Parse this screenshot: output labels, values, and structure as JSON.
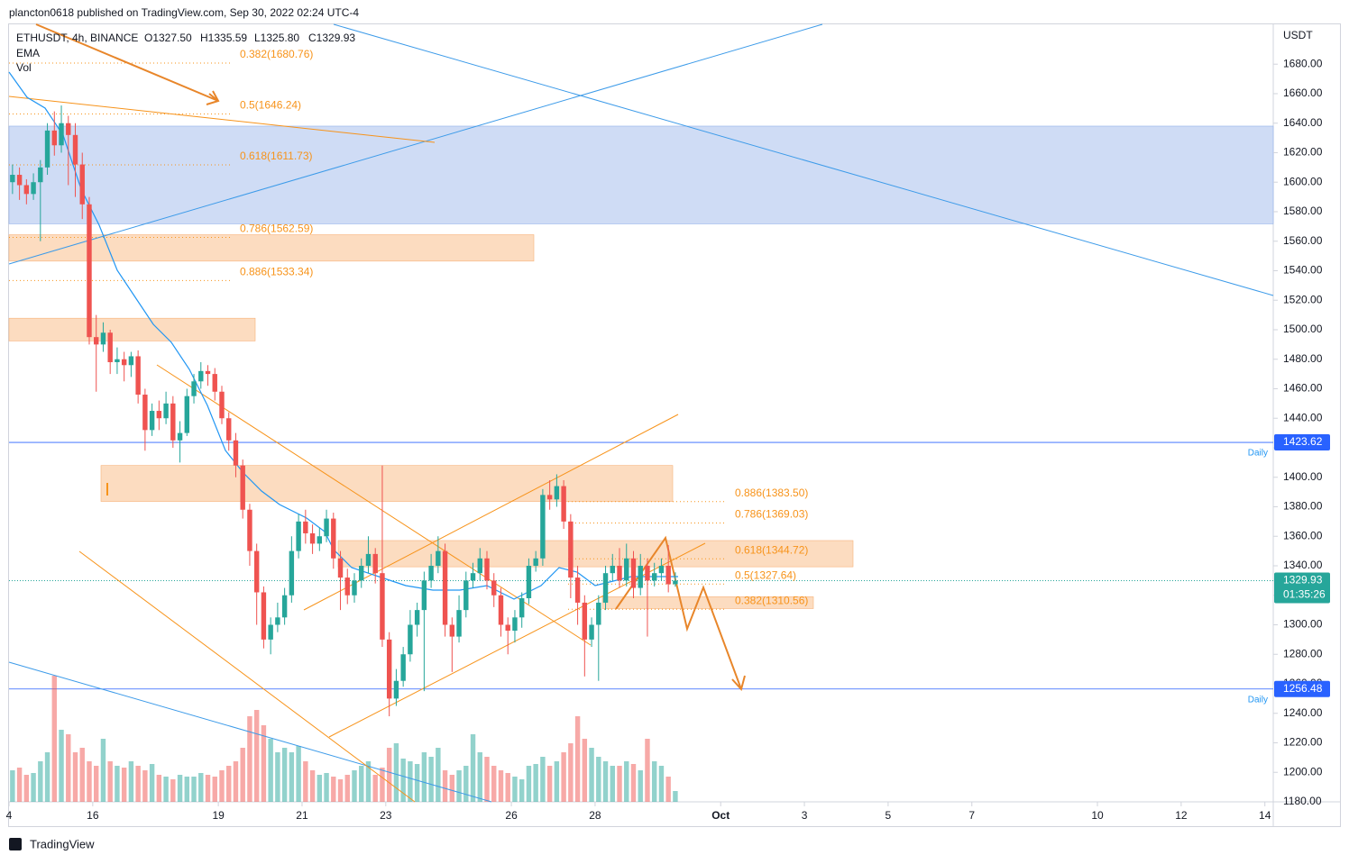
{
  "header": {
    "byline": "plancton0618 published on TradingView.com, Sep 30, 2022 02:24 UTC-4",
    "symbol": "ETHUSDT, 4h, BINANCE",
    "open": "O1327.50",
    "high": "H1335.59",
    "low": "L1325.80",
    "close": "C1329.93",
    "ema": "EMA",
    "vol": "Vol",
    "footer": "TradingView"
  },
  "chart_data": {
    "type": "candlestick",
    "currency": "USDT",
    "xlim": [
      14,
      44.2
    ],
    "xticks": [
      {
        "value": 14,
        "label": "4"
      },
      16,
      19,
      21,
      23,
      26,
      28,
      {
        "value": 31,
        "label": "Oct"
      },
      {
        "value": 33,
        "label": "3"
      },
      {
        "value": 35,
        "label": "5"
      },
      {
        "value": 37,
        "label": "7"
      },
      {
        "value": 40,
        "label": "10"
      },
      {
        "value": 42,
        "label": "12"
      },
      {
        "value": 44,
        "label": "14"
      }
    ],
    "ylim": [
      1180,
      1707
    ],
    "yticks": [
      {
        "value": 1180,
        "label": "1180.00"
      },
      {
        "value": 1200,
        "label": "1200.00"
      },
      {
        "value": 1220,
        "label": "1220.00"
      },
      {
        "value": 1240,
        "label": "1240.00"
      },
      {
        "value": 1260,
        "label": "1260.00"
      },
      {
        "value": 1280,
        "label": "1280.00"
      },
      {
        "value": 1300,
        "label": "1300.00"
      },
      {
        "value": 1320,
        "label": "1320.00"
      },
      {
        "value": 1340,
        "label": "1340.00"
      },
      {
        "value": 1360,
        "label": "1360.00"
      },
      {
        "value": 1380,
        "label": "1380.00"
      },
      {
        "value": 1400,
        "label": "1400.00"
      },
      {
        "value": 1420,
        "label": "1420.00"
      },
      {
        "value": 1440,
        "label": "1440.00"
      },
      {
        "value": 1460,
        "label": "1460.00"
      },
      {
        "value": 1480,
        "label": "1480.00"
      },
      {
        "value": 1500,
        "label": "1500.00"
      },
      {
        "value": 1520,
        "label": "1520.00"
      },
      {
        "value": 1540,
        "label": "1540.00"
      },
      {
        "value": 1560,
        "label": "1560.00"
      },
      {
        "value": 1580,
        "label": "1580.00"
      },
      {
        "value": 1600,
        "label": "1600.00"
      },
      {
        "value": 1620,
        "label": "1620.00"
      },
      {
        "value": 1640,
        "label": "1640.00"
      },
      {
        "value": 1660,
        "label": "1660.00"
      },
      {
        "value": 1680,
        "label": "1680.00"
      }
    ],
    "up_color": "#26a69a",
    "down_color": "#ef5350",
    "candles": [
      [
        1600,
        1612,
        1592,
        1605
      ],
      [
        1605,
        1610,
        1588,
        1598
      ],
      [
        1598,
        1602,
        1585,
        1592
      ],
      [
        1592,
        1606,
        1588,
        1600
      ],
      [
        1600,
        1615,
        1560,
        1610
      ],
      [
        1610,
        1640,
        1605,
        1635
      ],
      [
        1635,
        1648,
        1618,
        1625
      ],
      [
        1625,
        1652,
        1620,
        1640
      ],
      [
        1640,
        1645,
        1598,
        1632
      ],
      [
        1632,
        1640,
        1590,
        1612
      ],
      [
        1612,
        1620,
        1575,
        1585
      ],
      [
        1585,
        1590,
        1490,
        1495
      ],
      [
        1495,
        1510,
        1458,
        1490
      ],
      [
        1490,
        1505,
        1485,
        1498
      ],
      [
        1498,
        1500,
        1470,
        1478
      ],
      [
        1478,
        1488,
        1470,
        1480
      ],
      [
        1480,
        1485,
        1465,
        1476
      ],
      [
        1476,
        1485,
        1468,
        1482
      ],
      [
        1482,
        1486,
        1450,
        1456
      ],
      [
        1456,
        1460,
        1418,
        1432
      ],
      [
        1432,
        1450,
        1428,
        1445
      ],
      [
        1445,
        1452,
        1432,
        1440
      ],
      [
        1440,
        1458,
        1436,
        1450
      ],
      [
        1450,
        1455,
        1420,
        1425
      ],
      [
        1425,
        1438,
        1410,
        1430
      ],
      [
        1430,
        1460,
        1428,
        1455
      ],
      [
        1455,
        1470,
        1450,
        1465
      ],
      [
        1465,
        1478,
        1460,
        1472
      ],
      [
        1472,
        1476,
        1462,
        1470
      ],
      [
        1470,
        1474,
        1452,
        1458
      ],
      [
        1458,
        1462,
        1436,
        1440
      ],
      [
        1440,
        1444,
        1418,
        1425
      ],
      [
        1425,
        1430,
        1400,
        1408
      ],
      [
        1408,
        1412,
        1372,
        1378
      ],
      [
        1378,
        1382,
        1340,
        1350
      ],
      [
        1350,
        1355,
        1300,
        1322
      ],
      [
        1322,
        1326,
        1284,
        1290
      ],
      [
        1290,
        1305,
        1280,
        1300
      ],
      [
        1300,
        1315,
        1295,
        1305
      ],
      [
        1305,
        1325,
        1300,
        1320
      ],
      [
        1320,
        1360,
        1315,
        1350
      ],
      [
        1350,
        1375,
        1345,
        1370
      ],
      [
        1370,
        1378,
        1355,
        1362
      ],
      [
        1362,
        1368,
        1348,
        1355
      ],
      [
        1355,
        1366,
        1350,
        1360
      ],
      [
        1360,
        1378,
        1356,
        1372
      ],
      [
        1372,
        1376,
        1338,
        1345
      ],
      [
        1345,
        1350,
        1310,
        1332
      ],
      [
        1332,
        1338,
        1314,
        1320
      ],
      [
        1320,
        1335,
        1315,
        1330
      ],
      [
        1330,
        1345,
        1325,
        1340
      ],
      [
        1340,
        1360,
        1335,
        1348
      ],
      [
        1348,
        1352,
        1328,
        1335
      ],
      [
        1335,
        1408,
        1285,
        1290
      ],
      [
        1290,
        1295,
        1238,
        1250
      ],
      [
        1250,
        1270,
        1245,
        1262
      ],
      [
        1262,
        1285,
        1258,
        1280
      ],
      [
        1280,
        1310,
        1275,
        1300
      ],
      [
        1300,
        1315,
        1292,
        1310
      ],
      [
        1310,
        1336,
        1255,
        1330
      ],
      [
        1330,
        1348,
        1325,
        1340
      ],
      [
        1340,
        1360,
        1335,
        1350
      ],
      [
        1350,
        1355,
        1292,
        1300
      ],
      [
        1300,
        1305,
        1268,
        1292
      ],
      [
        1292,
        1320,
        1288,
        1310
      ],
      [
        1310,
        1336,
        1305,
        1330
      ],
      [
        1330,
        1342,
        1325,
        1335
      ],
      [
        1335,
        1352,
        1330,
        1345
      ],
      [
        1345,
        1350,
        1324,
        1330
      ],
      [
        1330,
        1335,
        1312,
        1320
      ],
      [
        1320,
        1325,
        1292,
        1300
      ],
      [
        1300,
        1305,
        1280,
        1296
      ],
      [
        1296,
        1310,
        1288,
        1305
      ],
      [
        1305,
        1322,
        1298,
        1318
      ],
      [
        1318,
        1345,
        1314,
        1340
      ],
      [
        1340,
        1350,
        1336,
        1345
      ],
      [
        1345,
        1392,
        1340,
        1388
      ],
      [
        1388,
        1398,
        1378,
        1385
      ],
      [
        1385,
        1402,
        1380,
        1394
      ],
      [
        1394,
        1398,
        1365,
        1370
      ],
      [
        1370,
        1375,
        1318,
        1332
      ],
      [
        1332,
        1340,
        1300,
        1315
      ],
      [
        1315,
        1320,
        1265,
        1290
      ],
      [
        1290,
        1305,
        1285,
        1300
      ],
      [
        1300,
        1320,
        1262,
        1315
      ],
      [
        1315,
        1340,
        1310,
        1335
      ],
      [
        1335,
        1348,
        1330,
        1340
      ],
      [
        1340,
        1352,
        1325,
        1330
      ],
      [
        1330,
        1355,
        1326,
        1345
      ],
      [
        1345,
        1350,
        1318,
        1325
      ],
      [
        1325,
        1348,
        1320,
        1340
      ],
      [
        1340,
        1345,
        1292,
        1330
      ],
      [
        1330,
        1342,
        1326,
        1335
      ],
      [
        1335,
        1345,
        1330,
        1340
      ],
      [
        1340,
        1354,
        1322,
        1327.5
      ],
      [
        1327.5,
        1335.59,
        1325.8,
        1329.93
      ]
    ],
    "volume": [
      35,
      38,
      30,
      32,
      45,
      55,
      140,
      80,
      75,
      55,
      60,
      45,
      40,
      70,
      45,
      40,
      38,
      45,
      40,
      35,
      42,
      30,
      28,
      25,
      30,
      28,
      28,
      32,
      30,
      28,
      35,
      40,
      45,
      60,
      95,
      102,
      85,
      70,
      55,
      60,
      55,
      62,
      45,
      35,
      30,
      32,
      28,
      25,
      30,
      35,
      40,
      45,
      30,
      38,
      60,
      65,
      48,
      45,
      42,
      55,
      50,
      60,
      35,
      30,
      35,
      40,
      75,
      55,
      50,
      40,
      35,
      32,
      28,
      25,
      40,
      42,
      50,
      40,
      45,
      55,
      65,
      95,
      70,
      60,
      50,
      45,
      40,
      40,
      45,
      42,
      35,
      70,
      45,
      40,
      28,
      12
    ],
    "zones": [
      {
        "low": 1571.8,
        "high": 1638,
        "color": "#cfdcf5"
      },
      {
        "low": 1546.5,
        "high": 1564.4,
        "color": "#fcdcc0"
      },
      {
        "low": 1492.4,
        "high": 1507.8,
        "color": "#fcdcc0"
      },
      {
        "low": 1383.6,
        "high": 1408,
        "color": "#fcdcc0"
      },
      {
        "low": 1339.3,
        "high": 1357.1,
        "color": "#fcdcc0"
      },
      {
        "low": 1311,
        "high": 1319,
        "color": "#fcdcc0"
      }
    ],
    "fib_left": [
      {
        "label": "0.382(1680.76)",
        "value": 1680.76
      },
      {
        "label": "0.5(1646.24)",
        "value": 1646.24
      },
      {
        "label": "0.618(1611.73)",
        "value": 1611.73
      },
      {
        "label": "0.786(1562.59)",
        "value": 1562.59
      },
      {
        "label": "0.886(1533.34)",
        "value": 1533.34
      }
    ],
    "fib_right": [
      {
        "label": "0.886(1383.50)",
        "value": 1383.5
      },
      {
        "label": "0.786(1369.03)",
        "value": 1369.03
      },
      {
        "label": "0.618(1344.72)",
        "value": 1344.72
      },
      {
        "label": "0.5(1327.64)",
        "value": 1327.64
      },
      {
        "label": "0.382(1310.56)",
        "value": 1310.56
      }
    ],
    "levels": [
      {
        "name": "Daily",
        "value": 1423.62,
        "label": "1423.62"
      },
      {
        "name": "Daily",
        "value": 1256.48,
        "label": "1256.48"
      }
    ],
    "last_price": {
      "value": 1329.93,
      "label": "1329.93",
      "countdown": "01:35:26"
    }
  }
}
